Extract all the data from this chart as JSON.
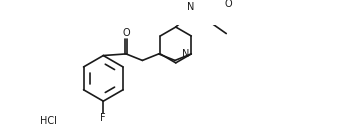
{
  "background_color": "#ffffff",
  "line_color": "#1a1a1a",
  "line_width": 1.2,
  "font_size": 7.0,
  "figsize": [
    3.41,
    1.37
  ],
  "dpi": 100,
  "xlim": [
    0,
    341
  ],
  "ylim": [
    0,
    137
  ]
}
